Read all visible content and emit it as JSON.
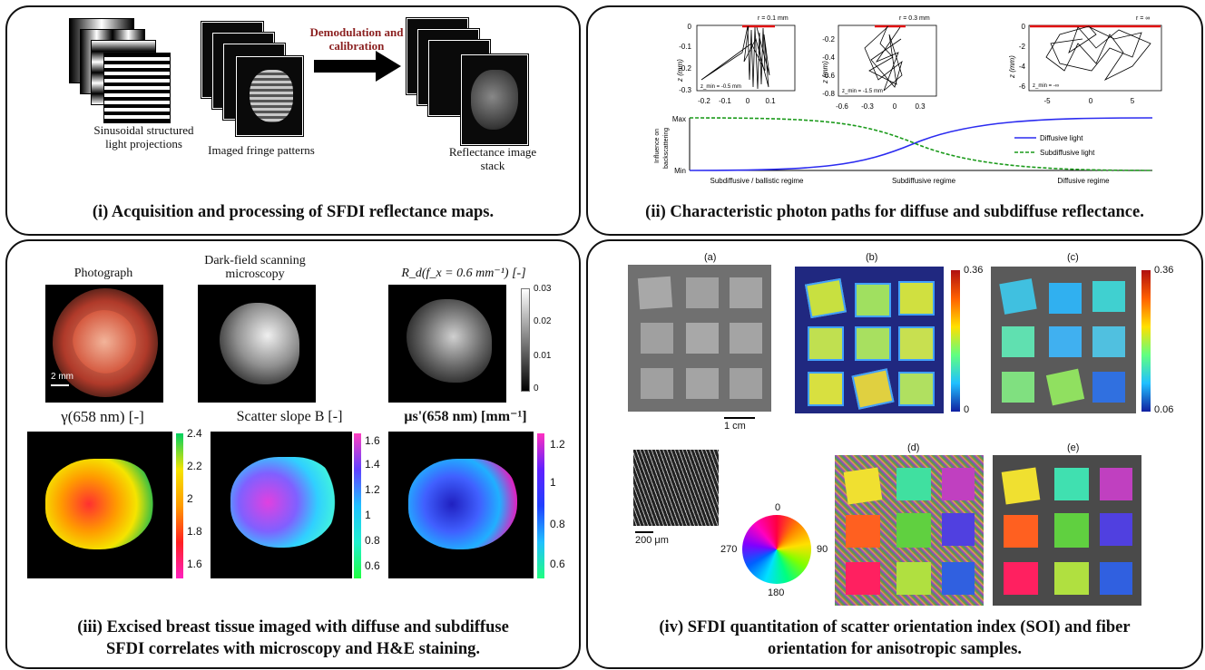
{
  "panel1": {
    "caption": "(i) Acquisition and processing of SFDI reflectance maps.",
    "sinusoidal_label": "Sinusoidal structured light projections",
    "fringe_label": "Imaged fringe patterns",
    "arrow_label": "Demodulation and calibration",
    "reflectance_label": "Reflectance image stack"
  },
  "panel2": {
    "caption": "(ii) Characteristic photon paths for diffuse and subdiffuse reflectance.",
    "r_labels": [
      "r = 0.1 mm",
      "r = 0.3 mm",
      "r = ∞"
    ],
    "zmin_labels": [
      "z_min = -0.5 mm",
      "z_min = -1.5 mm",
      "z_min = -∞"
    ],
    "zaxis_label": "z (mm)",
    "plot1_yticks": [
      "0",
      "-0.1",
      "-0.2",
      "-0.3"
    ],
    "plot1_xticks": [
      "-0.2",
      "-0.1",
      "0",
      "0.1"
    ],
    "plot2_yticks": [
      "-0.2",
      "-0.4",
      "-0.6",
      "-0.8"
    ],
    "plot2_xticks": [
      "-0.6",
      "-0.3",
      "0",
      "0.3"
    ],
    "plot3_yticks": [
      "0",
      "-2",
      "-4",
      "-6"
    ],
    "plot3_xticks": [
      "-5",
      "0",
      "5"
    ],
    "influence_ylabel_1": "Influence on",
    "influence_ylabel_2": "backscattering",
    "ymax": "Max",
    "ymin": "Min",
    "regimes": [
      "Subdiffusive / ballistic regime",
      "Subdiffusive regime",
      "Diffusive regime"
    ],
    "legend": [
      "Diffusive light",
      "Subdiffusive light"
    ],
    "colors": {
      "diffusive": "#2b2bf0",
      "subdiffusive": "#1a9a1a",
      "source": "#e01010"
    }
  },
  "panel3": {
    "caption_line1": "(iii) Excised breast tissue imaged with diffuse and subdiffuse",
    "caption_line2": "SFDI correlates with microscopy and H&E staining.",
    "photo_title": "Photograph",
    "darkfield_title_1": "Dark-field scanning",
    "darkfield_title_2": "microscopy",
    "rd_title": "R_d(f_x = 0.6 mm⁻¹) [-]",
    "scalebar": "2 mm",
    "rd_ticks": [
      "0.03",
      "0.02",
      "0.01",
      "0"
    ],
    "gamma_title": "γ(658 nm) [-]",
    "gamma_ticks": [
      "2.4",
      "2.2",
      "2",
      "1.8",
      "1.6"
    ],
    "slope_title": "Scatter slope B [-]",
    "slope_ticks": [
      "1.6",
      "1.4",
      "1.2",
      "1",
      "0.8",
      "0.6"
    ],
    "mus_title": "μs'(658 nm) [mm⁻¹]",
    "mus_ticks": [
      "1.2",
      "1",
      "0.8",
      "0.6"
    ]
  },
  "panel4": {
    "caption_line1": "(iv) SFDI quantitation of scatter orientation index (SOI) and fiber",
    "caption_line2": "orientation for anisotropic samples.",
    "sub_labels": [
      "(a)",
      "(b)",
      "(c)",
      "(d)",
      "(e)"
    ],
    "b_ticks": [
      "0.36",
      "0"
    ],
    "c_ticks": [
      "0.36",
      "0.06"
    ],
    "scale_cm": "1 cm",
    "scale_um": "200 μm",
    "wheel_labels": [
      "0",
      "90",
      "180",
      "270"
    ]
  }
}
